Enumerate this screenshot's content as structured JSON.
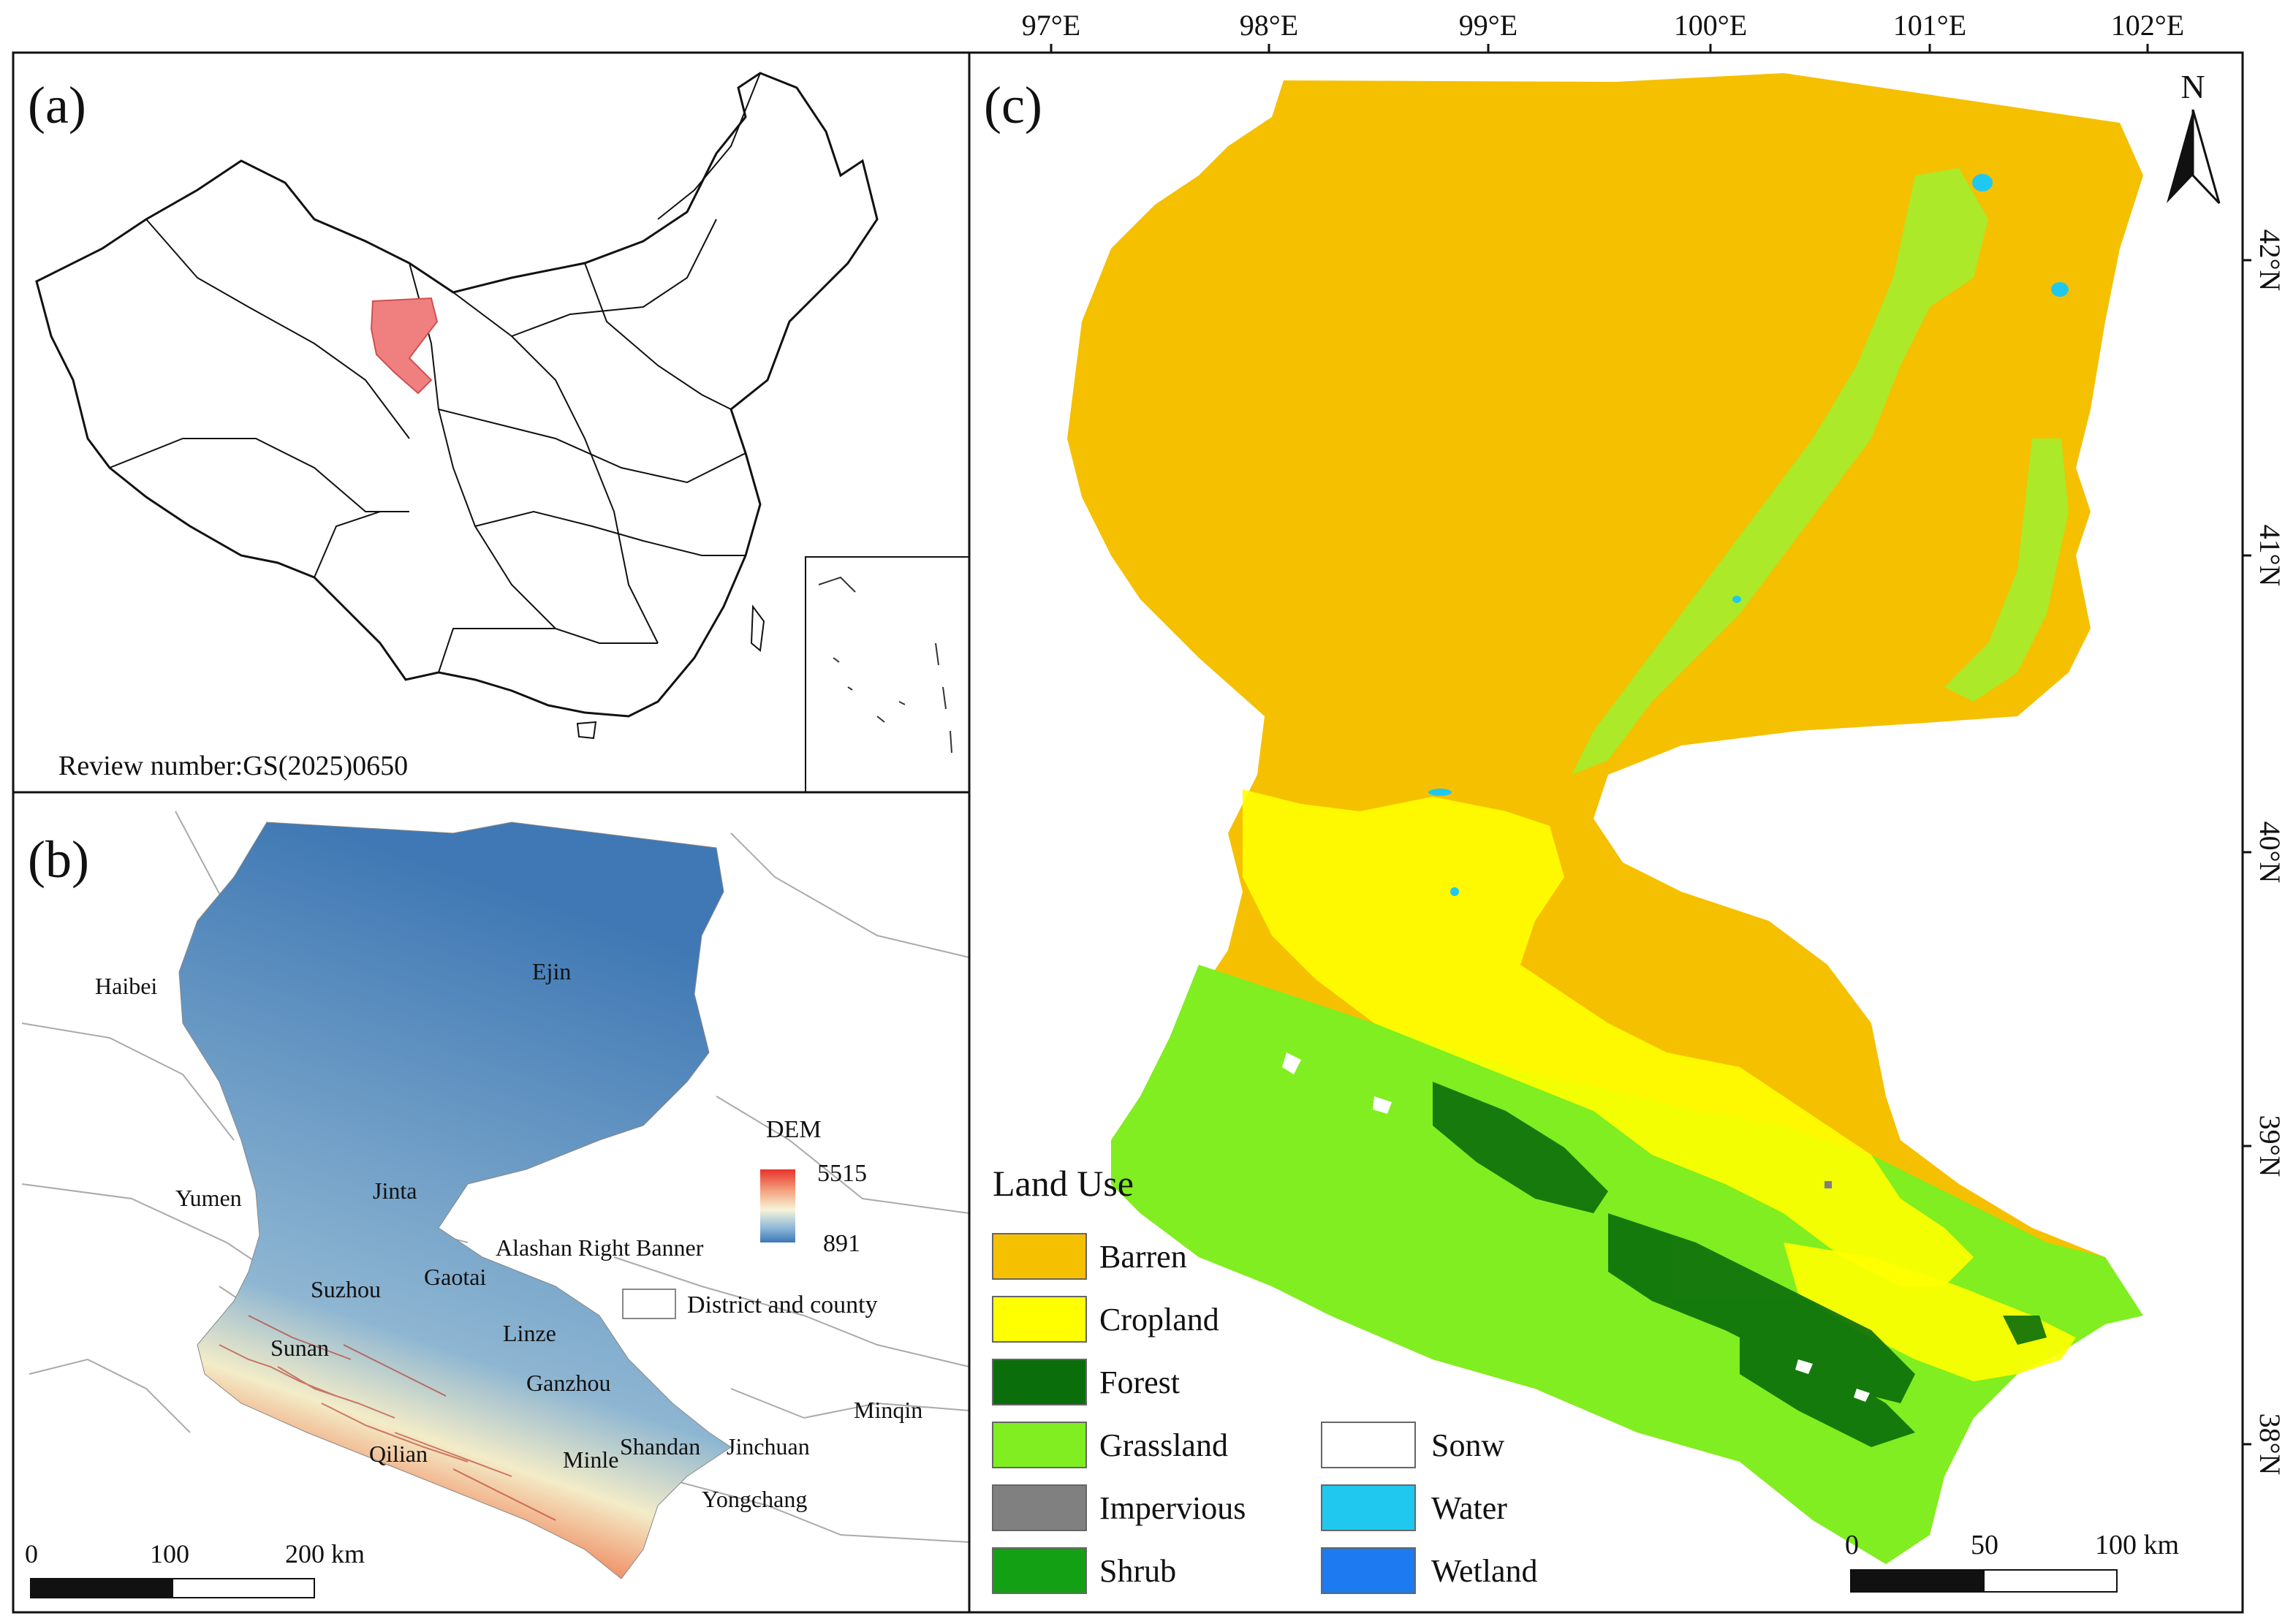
{
  "panels": {
    "a": {
      "label": "(a)",
      "review_number": "Review number:GS(2025)0650",
      "highlight_color": "#f08080"
    },
    "b": {
      "label": "(b)",
      "legend": {
        "title": "DEM",
        "max": "5515",
        "min": "891",
        "boundary_label": "District and county"
      },
      "gradient": [
        "#e8322a",
        "#f4a582",
        "#f7f4d8",
        "#8fb8d8",
        "#3b78b8"
      ],
      "places": {
        "haibei": "Haibei",
        "ejin": "Ejin",
        "yumen": "Yumen",
        "jinta": "Jinta",
        "alashan": "Alashan Right Banner",
        "suzhou": "Suzhou",
        "gaotai": "Gaotai",
        "linze": "Linze",
        "sunan": "Sunan",
        "ganzhou": "Ganzhou",
        "minqin": "Minqin",
        "qilian": "Qilian",
        "minle": "Minle",
        "shandan": "Shandan",
        "jinchuan": "Jinchuan",
        "yongchang": "Yongchang"
      },
      "scalebar": {
        "t0": "0",
        "t1": "100",
        "t2": "200 km"
      }
    },
    "c": {
      "label": "(c)",
      "north": "N",
      "lon_ticks": [
        "97°E",
        "98°E",
        "99°E",
        "100°E",
        "101°E",
        "102°E"
      ],
      "lat_ticks": [
        "42°N",
        "41°N",
        "40°N",
        "39°N",
        "38°N"
      ],
      "scalebar": {
        "t0": "0",
        "t1": "50",
        "t2": "100 km"
      },
      "legend": {
        "title": "Land Use",
        "items": [
          {
            "label": "Barren",
            "color": "#f5c000"
          },
          {
            "label": "Cropland",
            "color": "#ffff00"
          },
          {
            "label": "Forest",
            "color": "#0a6e0a"
          },
          {
            "label": "Grassland",
            "color": "#80ee20"
          },
          {
            "label": "Impervious",
            "color": "#808080"
          },
          {
            "label": "Shrub",
            "color": "#14a014"
          },
          {
            "label": "Sonw",
            "color": "#ffffff"
          },
          {
            "label": "Water",
            "color": "#20c8f0"
          },
          {
            "label": "Wetland",
            "color": "#1e7af0"
          }
        ]
      }
    }
  }
}
